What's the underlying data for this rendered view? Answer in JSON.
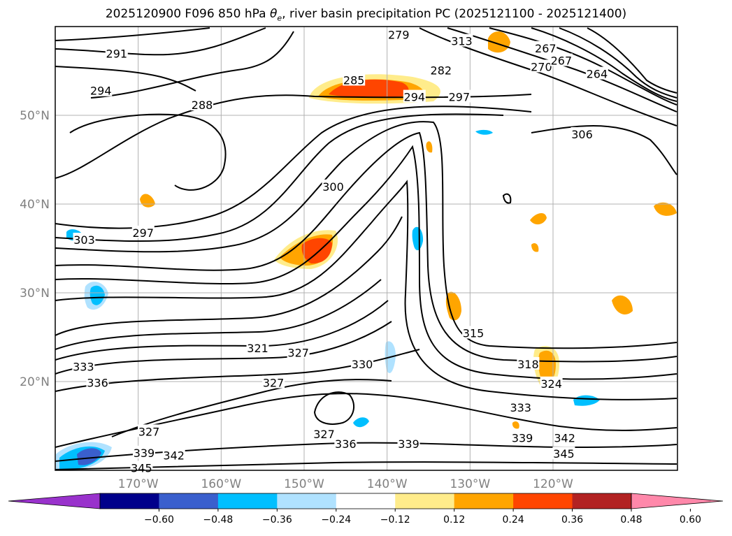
{
  "title_prefix": "2025120900 F096 850 hPa ",
  "title_theta": "θ",
  "title_sub": "e",
  "title_suffix": ", river basin precipitation PC (2025121100 - 2025121400)",
  "map": {
    "lon_range": [
      -180,
      -105
    ],
    "lat_range": [
      10,
      60
    ],
    "lat_ticks": [
      {
        "value": 50,
        "label": "50°N"
      },
      {
        "value": 40,
        "label": "40°N"
      },
      {
        "value": 30,
        "label": "30°N"
      },
      {
        "value": 20,
        "label": "20°N"
      }
    ],
    "lon_ticks": [
      {
        "value": -170,
        "label": "170°W"
      },
      {
        "value": -160,
        "label": "160°W"
      },
      {
        "value": -150,
        "label": "150°W"
      },
      {
        "value": -140,
        "label": "140°W"
      },
      {
        "value": -130,
        "label": "130°W"
      },
      {
        "value": -120,
        "label": "120°W"
      }
    ],
    "contour_labels": [
      {
        "text": "291",
        "lon": -172.6,
        "lat": 56.9
      },
      {
        "text": "294",
        "lon": -174.5,
        "lat": 52.7
      },
      {
        "text": "288",
        "lon": -162.3,
        "lat": 51.1
      },
      {
        "text": "285",
        "lon": -144.0,
        "lat": 53.9
      },
      {
        "text": "294",
        "lon": -136.7,
        "lat": 52.0
      },
      {
        "text": "282",
        "lon": -133.5,
        "lat": 55.0
      },
      {
        "text": "297",
        "lon": -131.3,
        "lat": 52.0
      },
      {
        "text": "267",
        "lon": -120.9,
        "lat": 57.5
      },
      {
        "text": "270",
        "lon": -121.4,
        "lat": 55.4
      },
      {
        "text": "267",
        "lon": -119.0,
        "lat": 56.1
      },
      {
        "text": "264",
        "lon": -114.7,
        "lat": 54.6
      },
      {
        "text": "300",
        "lon": -146.5,
        "lat": 41.9
      },
      {
        "text": "297",
        "lon": -169.4,
        "lat": 36.7
      },
      {
        "text": "303",
        "lon": -176.5,
        "lat": 35.9
      },
      {
        "text": "306",
        "lon": -116.5,
        "lat": 47.8
      },
      {
        "text": "315",
        "lon": -129.6,
        "lat": 25.4
      },
      {
        "text": "321",
        "lon": -155.6,
        "lat": 23.7
      },
      {
        "text": "327",
        "lon": -150.7,
        "lat": 23.2
      },
      {
        "text": "333",
        "lon": -176.6,
        "lat": 21.6
      },
      {
        "text": "336",
        "lon": -174.9,
        "lat": 19.8
      },
      {
        "text": "327",
        "lon": -153.7,
        "lat": 19.8
      },
      {
        "text": "318",
        "lon": -123.0,
        "lat": 21.9
      },
      {
        "text": "324",
        "lon": -120.2,
        "lat": 19.7
      },
      {
        "text": "333",
        "lon": -123.9,
        "lat": 17.0
      },
      {
        "text": "330",
        "lon": -143.0,
        "lat": 21.9
      },
      {
        "text": "327",
        "lon": -168.7,
        "lat": 14.3
      },
      {
        "text": "327",
        "lon": -147.6,
        "lat": 14.0
      },
      {
        "text": "336",
        "lon": -145.0,
        "lat": 12.9
      },
      {
        "text": "339",
        "lon": -137.4,
        "lat": 12.9
      },
      {
        "text": "339",
        "lon": -123.7,
        "lat": 13.6
      },
      {
        "text": "342",
        "lon": -118.6,
        "lat": 13.6
      },
      {
        "text": "345",
        "lon": -118.7,
        "lat": 11.8
      },
      {
        "text": "339",
        "lon": -169.3,
        "lat": 11.9
      },
      {
        "text": "342",
        "lon": -165.7,
        "lat": 11.6
      },
      {
        "text": "345",
        "lon": -169.6,
        "lat": 10.2
      },
      {
        "text": "279",
        "lon": -138.6,
        "lat": 59.0
      },
      {
        "text": "313",
        "lon": -131.0,
        "lat": 58.3
      }
    ]
  },
  "colorbar": {
    "colors": [
      "#9932cc",
      "#00008b",
      "#3a5fcd",
      "#00bfff",
      "#b0e2ff",
      "#ffffff",
      "#ffec8b",
      "#ffa500",
      "#ff4500",
      "#b22222",
      "#ff88aa"
    ],
    "tick_labels": [
      "−0.60",
      "−0.48",
      "−0.36",
      "−0.24",
      "−0.12",
      "0.12",
      "0.24",
      "0.36",
      "0.48",
      "0.60"
    ],
    "tick_values": [
      -0.6,
      -0.48,
      -0.36,
      -0.24,
      -0.12,
      0.12,
      0.24,
      0.36,
      0.48,
      0.6
    ]
  }
}
